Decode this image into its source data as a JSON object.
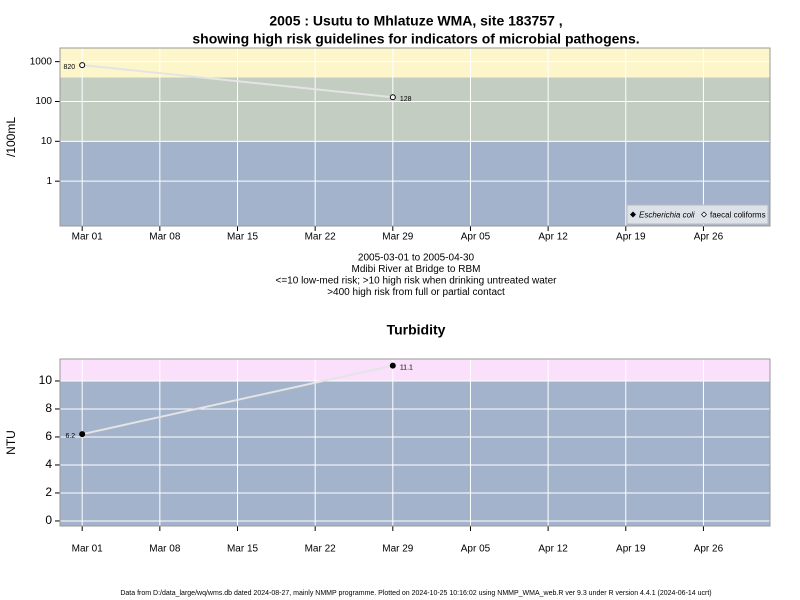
{
  "chart_data": [
    {
      "type": "line",
      "title": [
        "2005 : Usutu to Mhlatuze WMA, site 183757 ,",
        "showing high risk guidelines for indicators of microbial pathogens."
      ],
      "notes": [
        "2005-03-01 to 2005-04-30",
        "Mdibi River at Bridge to RBM",
        "<=10 low-med risk; >10 high risk when drinking untreated water",
        ">400 high risk from full or partial contact"
      ],
      "ylabel": "/100mL",
      "log": true,
      "grid": true,
      "legend": "lower right",
      "ylim": [
        0.075,
        2200
      ],
      "yticks": [
        1,
        10,
        100,
        1000
      ],
      "xlim": [
        "2005-02-27",
        "2005-05-02"
      ],
      "xticks": [
        {
          "value": "2005-03-01",
          "label": "Mar 01"
        },
        {
          "value": "2005-03-08",
          "label": "Mar 08"
        },
        {
          "value": "2005-03-15",
          "label": "Mar 15"
        },
        {
          "value": "2005-03-22",
          "label": "Mar 22"
        },
        {
          "value": "2005-03-29",
          "label": "Mar 29"
        },
        {
          "value": "2005-04-05",
          "label": "Apr 05"
        },
        {
          "value": "2005-04-12",
          "label": "Apr 12"
        },
        {
          "value": "2005-04-19",
          "label": "Apr 19"
        },
        {
          "value": "2005-04-26",
          "label": "Apr 26"
        }
      ],
      "bands": [
        {
          "to": 10,
          "color": "#a3b3cc"
        },
        {
          "from": 10,
          "to": 400,
          "color": "#c4cdc2"
        },
        {
          "from": 400,
          "color": "#fdf6cb"
        }
      ],
      "x": [
        "2005-03-01",
        "2005-03-29"
      ],
      "series": [
        {
          "name": "Escherichia coli",
          "color": "#000000",
          "values": [
            null,
            null
          ]
        },
        {
          "name": "faecal coliforms",
          "color": "#ffffff",
          "values": [
            820,
            128
          ]
        }
      ]
    },
    {
      "type": "line",
      "title": [
        "Turbidity"
      ],
      "ylabel": "NTU",
      "grid": true,
      "ylim": [
        -0.36,
        11.57
      ],
      "yticks": [
        0,
        2,
        4,
        6,
        8,
        10
      ],
      "xlim": [
        "2005-02-27",
        "2005-05-02"
      ],
      "xticks": [
        {
          "value": "2005-03-01",
          "label": "Mar 01"
        },
        {
          "value": "2005-03-08",
          "label": "Mar 08"
        },
        {
          "value": "2005-03-15",
          "label": "Mar 15"
        },
        {
          "value": "2005-03-22",
          "label": "Mar 22"
        },
        {
          "value": "2005-03-29",
          "label": "Mar 29"
        },
        {
          "value": "2005-04-05",
          "label": "Apr 05"
        },
        {
          "value": "2005-04-12",
          "label": "Apr 12"
        },
        {
          "value": "2005-04-19",
          "label": "Apr 19"
        },
        {
          "value": "2005-04-26",
          "label": "Apr 26"
        }
      ],
      "bands": [
        {
          "to": 10,
          "color": "#a3b3cc"
        },
        {
          "from": 10,
          "color": "#fbe0fb"
        }
      ],
      "x": [
        "2005-03-01",
        "2005-03-29"
      ],
      "series": [
        {
          "color": "#000000",
          "values": [
            6.2,
            11.1
          ]
        }
      ]
    }
  ],
  "footer": "Data from D:/data_large/wq/wms.db dated 2024-08-27, mainly NMMP programme. Plotted on 2024-10-25 10:16:02 using NMMP_WMA_web.R ver 9.3 under R version 4.4.1 (2024-06-14 ucrt)"
}
